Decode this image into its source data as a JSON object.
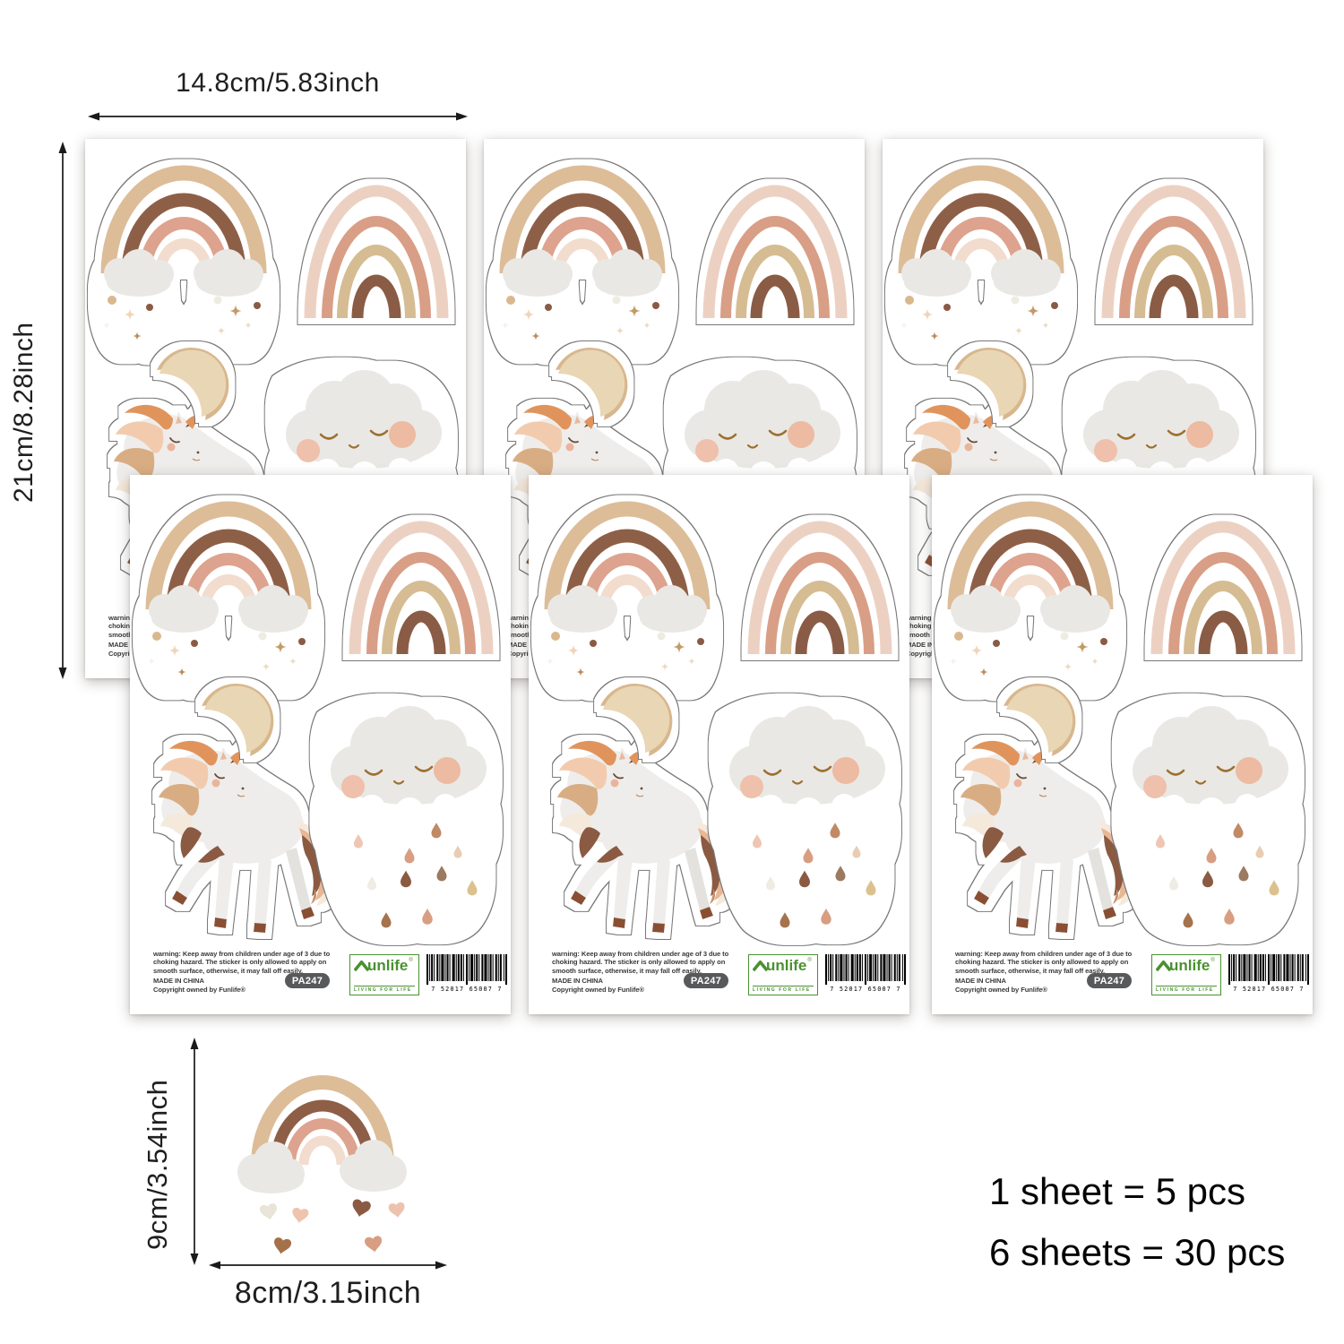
{
  "dimensions": {
    "sheet_width": "14.8cm/5.83inch",
    "sheet_height": "21cm/8.28inch",
    "sticker_height": "9cm/3.54inch",
    "sticker_width": "8cm/3.15inch"
  },
  "pack_info": {
    "line1": "1 sheet = 5 pcs",
    "line2": "6 sheets = 30 pcs"
  },
  "sheet": {
    "warning": "warning: Keep away from children under age of 3 due to choking hazard. The sticker is only allowed to apply on smooth surface, otherwise, it may fall off easily.",
    "made_in": "MADE IN CHINA",
    "copyright": "Copyright owned by Funlife®",
    "sku": "PA247",
    "brand": {
      "name": "unlife",
      "registered": "®",
      "tagline": "LIVING FOR LIFE",
      "icon": "house-roof-icon"
    },
    "barcode_digits": "7 52017 65007 7",
    "sticker_names": [
      "rainbow-with-clouds",
      "rainbow",
      "unicorn",
      "rain-cloud-with-face",
      "crescent-moon"
    ]
  },
  "colors": {
    "rainbow_tan": "#dcbd98",
    "rainbow_brown": "#8e5e47",
    "rainbow_salmon": "#dda38e",
    "rainbow_blush": "#f2dccd",
    "rainbow2_pink": "#ecd1c2",
    "rainbow2_salmon": "#d99e86",
    "rainbow2_khaki": "#d5bc92",
    "rainbow2_brown": "#8a5b45",
    "cloud_gray": "#e9e8e4",
    "moon_tan": "#d8b78d",
    "moon_cream": "#e9d6b4",
    "unicorn_body": "#eeedeb",
    "mane_orange": "#e0945c",
    "mane_peach": "#f2cbae",
    "accent_brown": "#8a5a42",
    "hoof_brown": "#8a4f33",
    "cheek_pink": "#eab49c",
    "logo_green": "#4a9130",
    "pill_gray": "#58595b"
  }
}
